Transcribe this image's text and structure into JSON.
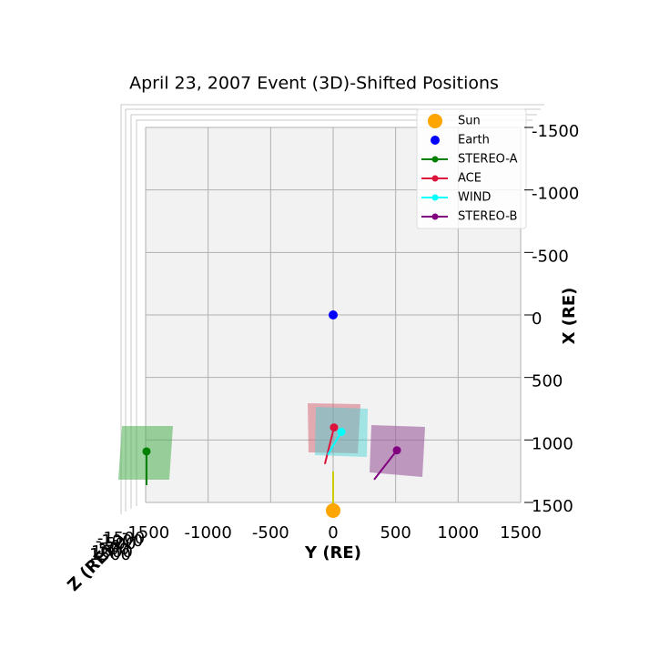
{
  "chart_data": {
    "type": "scatter",
    "title": "April 23, 2007 Event (3D)-Shifted Positions",
    "xlabel": "Y (RE)",
    "ylabel": "X (RE)",
    "zlabel": "Z (RE)",
    "xlim": [
      -1500,
      1500
    ],
    "ylim": [
      1500,
      -1500
    ],
    "xticks": [
      -1500,
      -1000,
      -500,
      0,
      500,
      1000,
      1500
    ],
    "yticks": [
      -1500,
      -1000,
      -500,
      0,
      500,
      1000,
      1500
    ],
    "zticks": [
      -1500,
      -1000,
      -500,
      0,
      500,
      1000,
      1500
    ],
    "grid": true,
    "legend": "upper right",
    "series": [
      {
        "name": "Sun",
        "color": "#ffa500",
        "marker_only": true,
        "x": [
          0,
          0
        ],
        "values": [
          1565,
          1251
        ],
        "line_color": "#cccc00"
      },
      {
        "name": "Earth",
        "color": "#0000ff",
        "marker_only": true,
        "x": [
          0
        ],
        "values": [
          0
        ]
      },
      {
        "name": "STEREO-A",
        "color": "#008000",
        "x": [
          -1493,
          -1493
        ],
        "values": [
          1092,
          1361
        ]
      },
      {
        "name": "ACE",
        "color": "#dc143c",
        "x": [
          7,
          -66
        ],
        "values": [
          900,
          1192
        ]
      },
      {
        "name": "WIND",
        "color": "#00ffff",
        "x": [
          66,
          -44
        ],
        "values": [
          936,
          1119
        ]
      },
      {
        "name": "STEREO-B",
        "color": "#800080",
        "x": [
          510,
          328
        ],
        "values": [
          1083,
          1317
        ]
      }
    ]
  }
}
